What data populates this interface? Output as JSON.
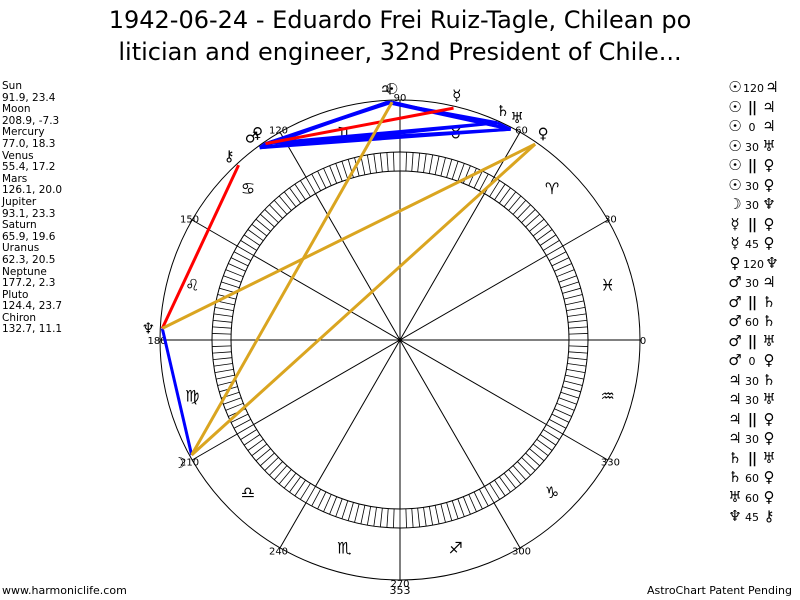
{
  "title": {
    "line1": "1942-06-24 - Eduardo Frei Ruiz-Tagle, Chilean po",
    "line2": "litician and engineer, 32nd President of Chile..."
  },
  "positions": [
    {
      "name": "Sun",
      "value": "91.9, 23.4"
    },
    {
      "name": "Moon",
      "value": "208.9, -7.3"
    },
    {
      "name": "Mercury",
      "value": "77.0, 18.3"
    },
    {
      "name": "Venus",
      "value": "55.4, 17.2"
    },
    {
      "name": "Mars",
      "value": "126.1, 20.0"
    },
    {
      "name": "Jupiter",
      "value": "93.1, 23.3"
    },
    {
      "name": "Saturn",
      "value": "65.9, 19.6"
    },
    {
      "name": "Uranus",
      "value": "62.3, 20.5"
    },
    {
      "name": "Neptune",
      "value": "177.2, 2.3"
    },
    {
      "name": "Pluto",
      "value": "124.4, 23.7"
    },
    {
      "name": "Chiron",
      "value": "132.7, 11.1"
    }
  ],
  "aspects": [
    {
      "a": "☉",
      "v": "120",
      "b": "♃"
    },
    {
      "a": "☉",
      "v": "||",
      "b": "♃"
    },
    {
      "a": "☉",
      "v": "0",
      "b": "♃"
    },
    {
      "a": "☉",
      "v": "30",
      "b": "♅"
    },
    {
      "a": "☉",
      "v": "||",
      "b": "♀"
    },
    {
      "a": "☉",
      "v": "30",
      "b": "♀"
    },
    {
      "a": "☽",
      "v": "30",
      "b": "♆"
    },
    {
      "a": "☿",
      "v": "||",
      "b": "♀"
    },
    {
      "a": "☿",
      "v": "45",
      "b": "♀"
    },
    {
      "a": "♀",
      "v": "120",
      "b": "♆"
    },
    {
      "a": "♂",
      "v": "30",
      "b": "♃"
    },
    {
      "a": "♂",
      "v": "||",
      "b": "♄"
    },
    {
      "a": "♂",
      "v": "60",
      "b": "♄"
    },
    {
      "a": "♂",
      "v": "||",
      "b": "♅"
    },
    {
      "a": "♂",
      "v": "0",
      "b": "♀"
    },
    {
      "a": "♃",
      "v": "30",
      "b": "♄"
    },
    {
      "a": "♃",
      "v": "30",
      "b": "♅"
    },
    {
      "a": "♃",
      "v": "||",
      "b": "♀"
    },
    {
      "a": "♃",
      "v": "30",
      "b": "♀"
    },
    {
      "a": "♄",
      "v": "||",
      "b": "♅"
    },
    {
      "a": "♄",
      "v": "60",
      "b": "♀"
    },
    {
      "a": "♅",
      "v": "60",
      "b": "♀"
    },
    {
      "a": "♆",
      "v": "45",
      "b": "⚷"
    }
  ],
  "wheel": {
    "degree_labels": [
      {
        "deg": 0,
        "text": "0"
      },
      {
        "deg": 30,
        "text": "30"
      },
      {
        "deg": 60,
        "text": "60"
      },
      {
        "deg": 90,
        "text": "90"
      },
      {
        "deg": 120,
        "text": "120"
      },
      {
        "deg": 150,
        "text": "150"
      },
      {
        "deg": 180,
        "text": "180"
      },
      {
        "deg": 210,
        "text": "210"
      },
      {
        "deg": 240,
        "text": "240"
      },
      {
        "deg": 270,
        "text": "270"
      },
      {
        "deg": 300,
        "text": "300"
      },
      {
        "deg": 330,
        "text": "330"
      }
    ],
    "signs": [
      {
        "deg": 15,
        "glyph": "♓"
      },
      {
        "deg": 45,
        "glyph": "♈"
      },
      {
        "deg": 75,
        "glyph": "♉"
      },
      {
        "deg": 105,
        "glyph": "♊"
      },
      {
        "deg": 135,
        "glyph": "♋"
      },
      {
        "deg": 165,
        "glyph": "♌"
      },
      {
        "deg": 195,
        "glyph": "♍"
      },
      {
        "deg": 225,
        "glyph": "♎"
      },
      {
        "deg": 255,
        "glyph": "♏"
      },
      {
        "deg": 285,
        "glyph": "♐"
      },
      {
        "deg": 315,
        "glyph": "♑"
      },
      {
        "deg": 345,
        "glyph": "♒"
      }
    ],
    "planets": [
      {
        "name": "Sun",
        "glyph": "☉",
        "lon": 91.9
      },
      {
        "name": "Moon",
        "glyph": "☽",
        "lon": 208.9
      },
      {
        "name": "Mercury",
        "glyph": "☿",
        "lon": 77.0
      },
      {
        "name": "Venus",
        "glyph": "♀",
        "lon": 55.4
      },
      {
        "name": "Mars",
        "glyph": "♂",
        "lon": 126.1
      },
      {
        "name": "Jupiter",
        "glyph": "♃",
        "lon": 93.1
      },
      {
        "name": "Saturn",
        "glyph": "♄",
        "lon": 65.9
      },
      {
        "name": "Uranus",
        "glyph": "♅",
        "lon": 62.3
      },
      {
        "name": "Neptune",
        "glyph": "♆",
        "lon": 177.2
      },
      {
        "name": "Pluto",
        "glyph": "♀",
        "lon": 124.4
      },
      {
        "name": "Chiron",
        "glyph": "⚷",
        "lon": 132.7
      }
    ],
    "aspect_lines": [
      {
        "from": "Sun",
        "to": "Jupiter",
        "color": "#0000ff"
      },
      {
        "from": "Sun",
        "to": "Uranus",
        "color": "#0000ff"
      },
      {
        "from": "Sun",
        "to": "Pluto",
        "color": "#0000ff"
      },
      {
        "from": "Jupiter",
        "to": "Saturn",
        "color": "#0000ff"
      },
      {
        "from": "Jupiter",
        "to": "Uranus",
        "color": "#0000ff"
      },
      {
        "from": "Jupiter",
        "to": "Pluto",
        "color": "#0000ff"
      },
      {
        "from": "Saturn",
        "to": "Pluto",
        "color": "#0000ff"
      },
      {
        "from": "Uranus",
        "to": "Pluto",
        "color": "#0000ff"
      },
      {
        "from": "Mars",
        "to": "Saturn",
        "color": "#0000ff"
      },
      {
        "from": "Mars",
        "to": "Uranus",
        "color": "#0000ff"
      },
      {
        "from": "Mars",
        "to": "Pluto",
        "color": "#0000ff"
      },
      {
        "from": "Mars",
        "to": "Jupiter",
        "color": "#0000ff"
      },
      {
        "from": "Saturn",
        "to": "Uranus",
        "color": "#0000ff"
      },
      {
        "from": "Moon",
        "to": "Neptune",
        "color": "#0000ff"
      },
      {
        "from": "Neptune",
        "to": "Chiron",
        "color": "#ff0000"
      },
      {
        "from": "Mercury",
        "to": "Pluto",
        "color": "#ff0000"
      },
      {
        "from": "Venus",
        "to": "Neptune",
        "color": "#daa520"
      },
      {
        "from": "Moon",
        "to": "Venus",
        "color": "#daa520"
      },
      {
        "from": "Sun",
        "to": "Moon",
        "color": "#daa520"
      }
    ]
  },
  "footer": {
    "left": "www.harmoniclife.com",
    "center": "353",
    "right": "AstroChart Patent Pending"
  }
}
